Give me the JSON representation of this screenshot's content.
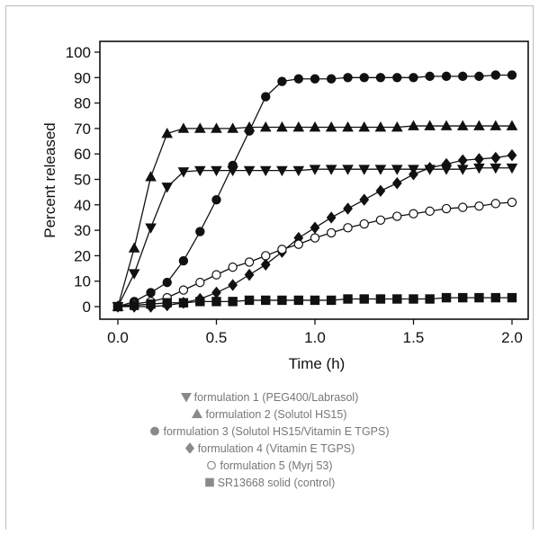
{
  "chart_data": {
    "type": "line",
    "xlabel": "Time (h)",
    "ylabel": "Percent released",
    "xlim": [
      0,
      2.0
    ],
    "ylim": [
      0,
      100
    ],
    "xticks": [
      "0.0",
      "0.5",
      "1.0",
      "1.5",
      "2.0"
    ],
    "yticks": [
      "0",
      "10",
      "20",
      "30",
      "40",
      "50",
      "60",
      "70",
      "80",
      "90",
      "100"
    ],
    "grid": false,
    "legend_position": "below",
    "series": [
      {
        "name": "formulation 1 (PEG400/Labrasol)",
        "marker": "triangle-down",
        "filled": true,
        "x": [
          0,
          0.083,
          0.167,
          0.25,
          0.333,
          0.417,
          0.5,
          0.583,
          0.667,
          0.75,
          0.833,
          0.917,
          1.0,
          1.083,
          1.167,
          1.25,
          1.333,
          1.417,
          1.5,
          1.583,
          1.667,
          1.75,
          1.833,
          1.917,
          2.0
        ],
        "y": [
          0,
          13,
          31,
          47,
          53,
          53.5,
          53.5,
          53.5,
          53.5,
          53.5,
          53.5,
          53.5,
          54,
          54,
          54,
          54,
          54,
          54,
          54,
          54,
          54,
          54,
          54.5,
          54.5,
          54.5
        ]
      },
      {
        "name": "formulation 2 (Solutol HS15)",
        "marker": "triangle-up",
        "filled": true,
        "x": [
          0,
          0.083,
          0.167,
          0.25,
          0.333,
          0.417,
          0.5,
          0.583,
          0.667,
          0.75,
          0.833,
          0.917,
          1.0,
          1.083,
          1.167,
          1.25,
          1.333,
          1.417,
          1.5,
          1.583,
          1.667,
          1.75,
          1.833,
          1.917,
          2.0
        ],
        "y": [
          0,
          23,
          51,
          68,
          70,
          70,
          70,
          70,
          70.5,
          70.5,
          70.5,
          70.5,
          70.5,
          70.5,
          70.5,
          70.5,
          70.5,
          70.5,
          71,
          71,
          71,
          71,
          71,
          71,
          71
        ]
      },
      {
        "name": "formulation 3 (Solutol HS15/Vitamin E TGPS)",
        "marker": "circle",
        "filled": true,
        "x": [
          0,
          0.083,
          0.167,
          0.25,
          0.333,
          0.417,
          0.5,
          0.583,
          0.667,
          0.75,
          0.833,
          0.917,
          1.0,
          1.083,
          1.167,
          1.25,
          1.333,
          1.417,
          1.5,
          1.583,
          1.667,
          1.75,
          1.833,
          1.917,
          2.0
        ],
        "y": [
          0,
          2,
          5.5,
          9.5,
          18,
          29.5,
          42,
          55.5,
          69,
          82.5,
          88.5,
          89.5,
          89.5,
          89.5,
          90,
          90,
          90,
          90,
          90,
          90.5,
          90.5,
          90.5,
          90.5,
          91,
          91
        ]
      },
      {
        "name": "formulation 4 (Vitamin E TGPS)",
        "marker": "diamond",
        "filled": true,
        "x": [
          0,
          0.083,
          0.167,
          0.25,
          0.333,
          0.417,
          0.5,
          0.583,
          0.667,
          0.75,
          0.833,
          0.917,
          1.0,
          1.083,
          1.167,
          1.25,
          1.333,
          1.417,
          1.5,
          1.583,
          1.667,
          1.75,
          1.833,
          1.917,
          2.0
        ],
        "y": [
          0,
          0,
          0,
          0.5,
          1.5,
          3,
          5.5,
          8.5,
          12.5,
          16.5,
          21.5,
          27,
          31,
          35,
          38.5,
          42,
          45.5,
          48.5,
          52,
          54.5,
          56,
          57.5,
          58,
          58.5,
          59.5
        ]
      },
      {
        "name": "formulation 5 (Myrj 53)",
        "marker": "circle",
        "filled": false,
        "x": [
          0,
          0.083,
          0.167,
          0.25,
          0.333,
          0.417,
          0.5,
          0.583,
          0.667,
          0.75,
          0.833,
          0.917,
          1.0,
          1.083,
          1.167,
          1.25,
          1.333,
          1.417,
          1.5,
          1.583,
          1.667,
          1.75,
          1.833,
          1.917,
          2.0
        ],
        "y": [
          0,
          1,
          2,
          3.5,
          6.5,
          9.5,
          12.5,
          15.5,
          17.5,
          20,
          22.5,
          24.5,
          27,
          29,
          31,
          32.5,
          34,
          35.5,
          36.5,
          37.5,
          38.5,
          39,
          39.5,
          40.5,
          41
        ]
      },
      {
        "name": "SR13668 solid (control)",
        "marker": "square",
        "filled": true,
        "x": [
          0,
          0.083,
          0.167,
          0.25,
          0.333,
          0.417,
          0.5,
          0.583,
          0.667,
          0.75,
          0.833,
          0.917,
          1.0,
          1.083,
          1.167,
          1.25,
          1.333,
          1.417,
          1.5,
          1.583,
          1.667,
          1.75,
          1.833,
          1.917,
          2.0
        ],
        "y": [
          0,
          0.5,
          1,
          1.5,
          1.5,
          2,
          2,
          2,
          2.5,
          2.5,
          2.5,
          2.5,
          2.5,
          2.5,
          3,
          3,
          3,
          3,
          3,
          3,
          3.5,
          3.5,
          3.5,
          3.5,
          3.5
        ]
      }
    ]
  },
  "legend": {
    "marker_color": "#8a8a8a",
    "items": [
      {
        "marker": "triangle-down",
        "label": "formulation 1 (PEG400/Labrasol)"
      },
      {
        "marker": "triangle-up",
        "label": "formulation 2 (Solutol HS15)"
      },
      {
        "marker": "circle",
        "label": "formulation 3 (Solutol HS15/Vitamin E TGPS)"
      },
      {
        "marker": "diamond",
        "label": "formulation 4 (Vitamin E TGPS)"
      },
      {
        "marker": "circle-open",
        "label": "formulation 5 (Myrj 53)"
      },
      {
        "marker": "square",
        "label": "SR13668 solid (control)"
      }
    ]
  }
}
